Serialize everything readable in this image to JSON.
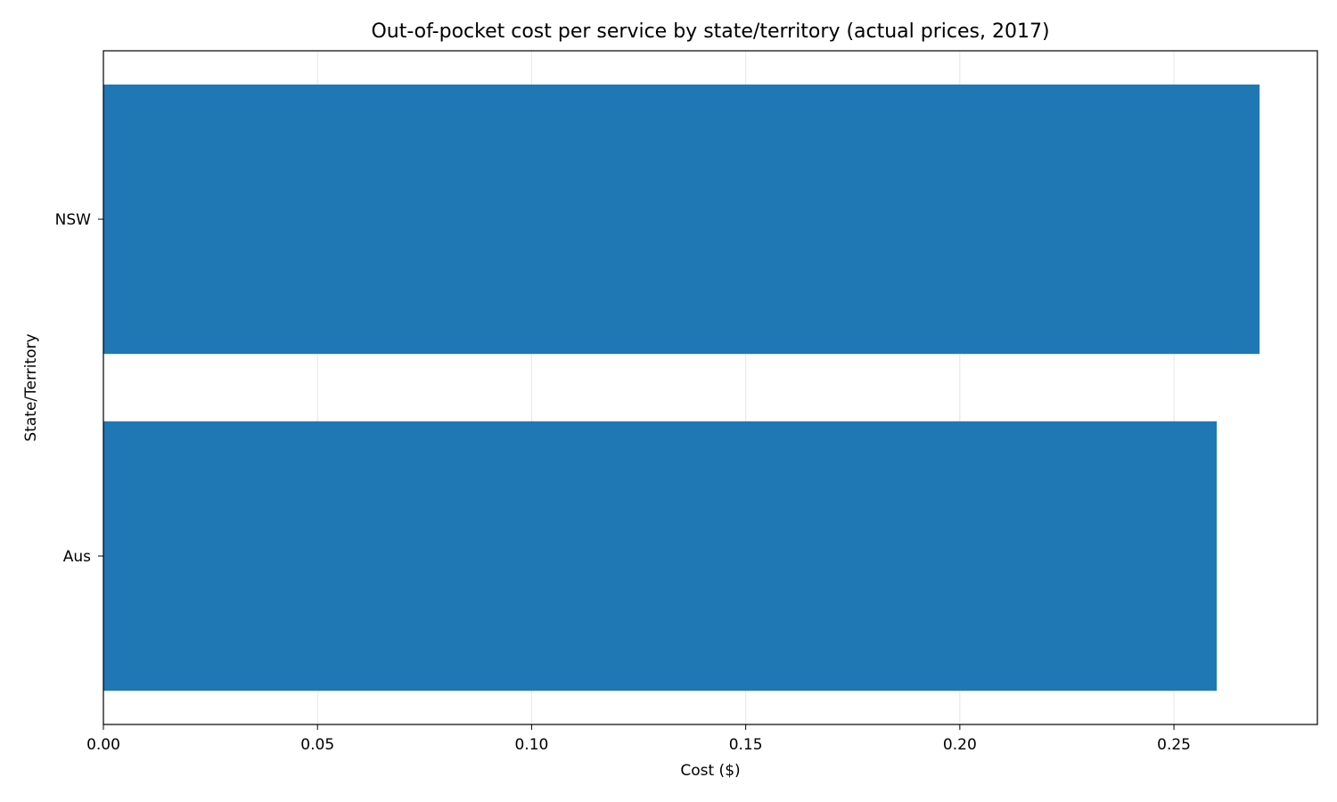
{
  "chart_data": {
    "type": "bar",
    "orientation": "horizontal",
    "title": "Out-of-pocket cost per service by state/territory (actual prices, 2017)",
    "xlabel": "Cost ($)",
    "ylabel": "State/Territory",
    "categories": [
      "Aus",
      "NSW"
    ],
    "values": [
      0.26,
      0.27
    ],
    "xlim": [
      0,
      0.2835
    ],
    "xticks": [
      0,
      0.05,
      0.1,
      0.15,
      0.2,
      0.25
    ],
    "xtick_labels": [
      "0.00",
      "0.05",
      "0.10",
      "0.15",
      "0.20",
      "0.25"
    ],
    "grid": "vertical",
    "bar_color": "#1f77b4"
  }
}
